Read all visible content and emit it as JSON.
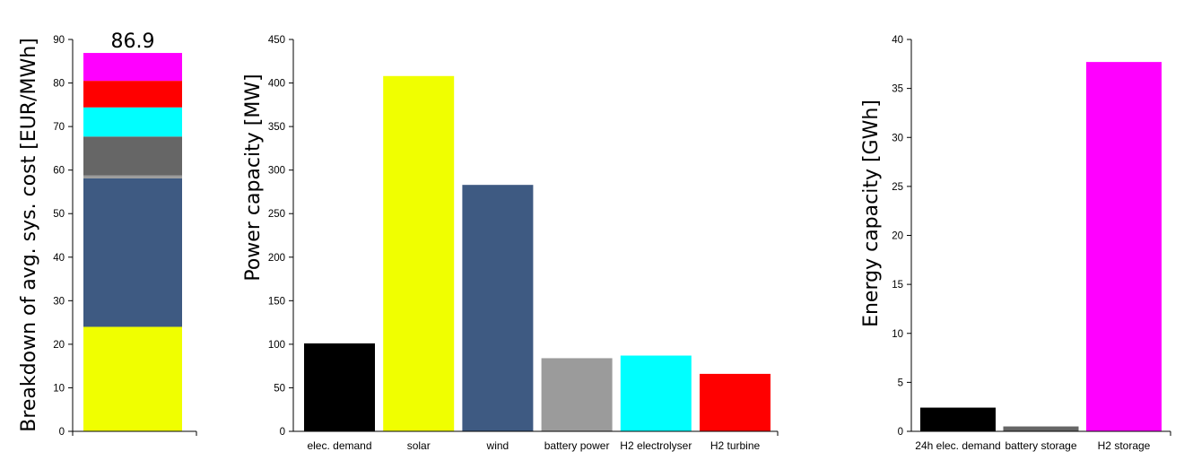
{
  "chart_data": [
    {
      "type": "bar",
      "stacked": true,
      "ylabel": "Breakdown of avg. sys. cost [EUR/MWh]",
      "ylim": [
        0,
        90
      ],
      "yticks": [
        0,
        10,
        20,
        30,
        40,
        50,
        60,
        70,
        80,
        90
      ],
      "total_label": "86.9",
      "grid": false,
      "segments": [
        {
          "value": 24.0,
          "color": "#f0ff00"
        },
        {
          "value": 34.1,
          "color": "#3e5a82"
        },
        {
          "value": 0.7,
          "color": "#9b9b9b"
        },
        {
          "value": 8.9,
          "color": "#666666"
        },
        {
          "value": 6.7,
          "color": "#00ffff"
        },
        {
          "value": 6.1,
          "color": "#ff0000"
        },
        {
          "value": 6.4,
          "color": "#ff00ff"
        }
      ]
    },
    {
      "type": "bar",
      "ylabel": "Power capacity [MW]",
      "ylim": [
        0,
        450
      ],
      "yticks": [
        0,
        50,
        100,
        150,
        200,
        250,
        300,
        350,
        400,
        450
      ],
      "grid": false,
      "categories": [
        "elec. demand",
        "solar",
        "wind",
        "battery power",
        "H2 electrolyser",
        "H2 turbine"
      ],
      "values": [
        101,
        408,
        283,
        84,
        87,
        66
      ],
      "colors": [
        "#000000",
        "#f0ff00",
        "#3e5a82",
        "#9b9b9b",
        "#00ffff",
        "#ff0000"
      ]
    },
    {
      "type": "bar",
      "ylabel": "Energy capacity [GWh]",
      "ylim": [
        0,
        40
      ],
      "yticks": [
        0,
        5,
        10,
        15,
        20,
        25,
        30,
        35,
        40
      ],
      "grid": false,
      "categories": [
        "24h elec. demand",
        "battery storage",
        "H2 storage"
      ],
      "values": [
        2.42,
        0.5,
        37.7
      ],
      "colors": [
        "#000000",
        "#666666",
        "#ff00ff"
      ]
    }
  ]
}
